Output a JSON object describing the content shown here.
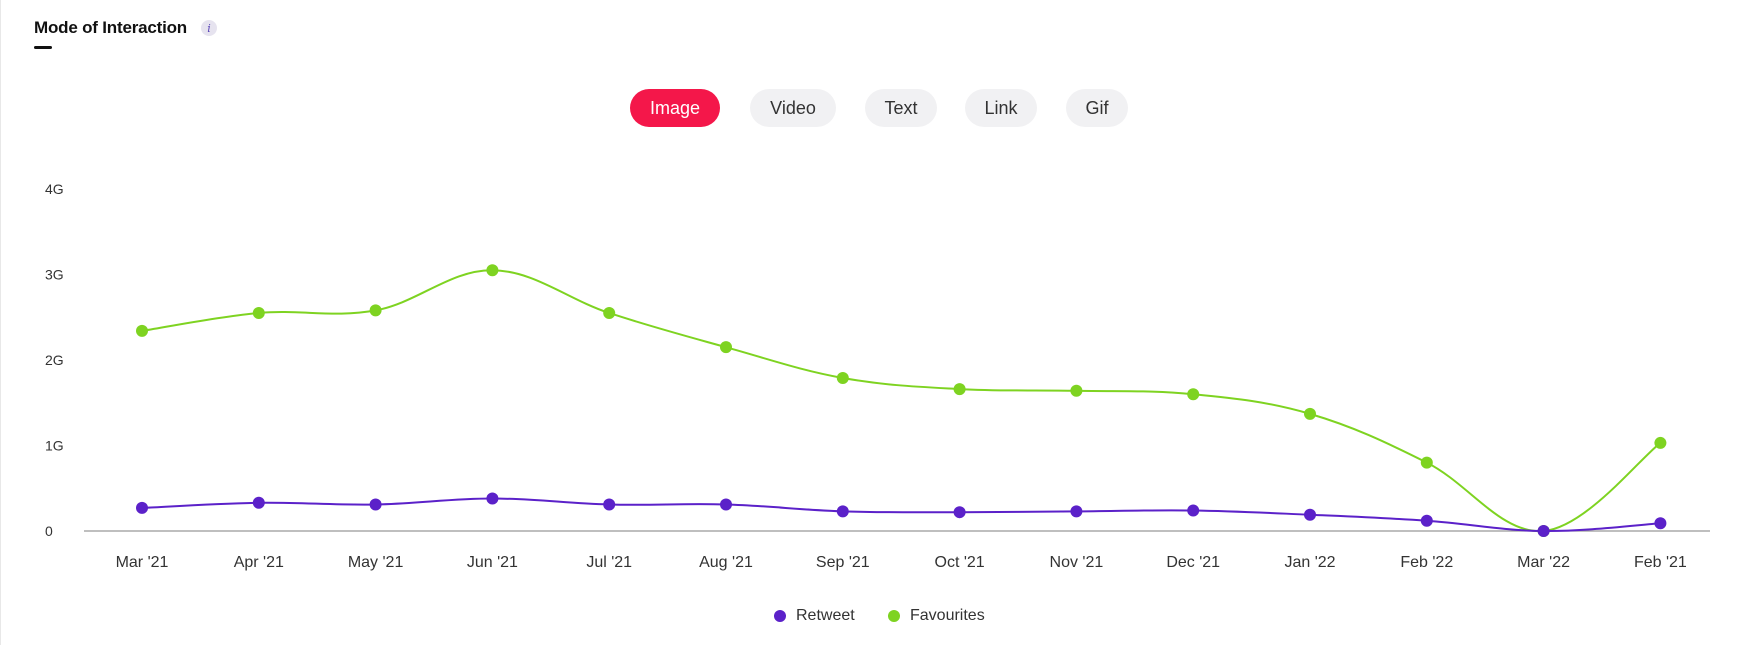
{
  "header": {
    "title": "Mode of Interaction",
    "info_label": "i"
  },
  "tabs": [
    {
      "label": "Image",
      "active": true
    },
    {
      "label": "Video",
      "active": false
    },
    {
      "label": "Text",
      "active": false
    },
    {
      "label": "Link",
      "active": false
    },
    {
      "label": "Gif",
      "active": false
    }
  ],
  "colors": {
    "accent": "#f4174a",
    "retweet": "#5b21c9",
    "favourites": "#7ed321",
    "axis": "#999999"
  },
  "chart_data": {
    "type": "line",
    "categories": [
      "Mar '21",
      "Apr '21",
      "May '21",
      "Jun '21",
      "Jul '21",
      "Aug '21",
      "Sep '21",
      "Oct '21",
      "Nov '21",
      "Dec '21",
      "Jan '22",
      "Feb '22",
      "Mar '22",
      "Feb '21"
    ],
    "y_ticks": [
      "0",
      "1G",
      "2G",
      "3G",
      "4G"
    ],
    "ylim": [
      0,
      4
    ],
    "y_unit": "G",
    "grid": false,
    "legend_position": "bottom-center",
    "series": [
      {
        "name": "Retweet",
        "color": "#5b21c9",
        "values": [
          0.27,
          0.33,
          0.31,
          0.38,
          0.31,
          0.31,
          0.23,
          0.22,
          0.23,
          0.24,
          0.19,
          0.12,
          0.0,
          0.09
        ]
      },
      {
        "name": "Favourites",
        "color": "#7ed321",
        "values": [
          2.34,
          2.55,
          2.58,
          3.05,
          2.55,
          2.15,
          1.79,
          1.66,
          1.64,
          1.6,
          1.37,
          0.8,
          0.0,
          1.03
        ]
      }
    ]
  }
}
